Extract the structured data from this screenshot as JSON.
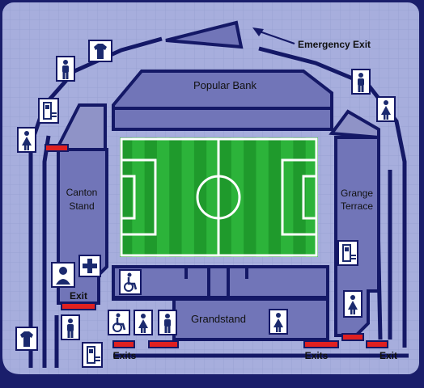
{
  "colors": {
    "background": "#a7aedd",
    "grid": "#9aa1d2",
    "frame": "#141866",
    "stand": "#7175b8",
    "stand_dark": "#5c60a0",
    "pitch": "#1f9a2c",
    "pitch_stripe": "#2cb33a",
    "exit_marker": "#e02020",
    "icon_bg": "#ffffff",
    "icon_fg": "#1b2a6e"
  },
  "stands": {
    "north": "Popular Bank",
    "west_line1": "Canton",
    "west_line2": "Stand",
    "east_line1": "Grange",
    "east_line2": "Terrace",
    "south": "Grandstand"
  },
  "labels": {
    "emergency_exit": "Emergency Exit",
    "exit_west": "Exit",
    "exits_south_left": "Exits",
    "exits_south_right": "Exits",
    "exit_southeast": "Exit"
  },
  "icons": [
    "shirt-icon",
    "male-toilet-icon",
    "female-toilet-icon",
    "phone-icon",
    "first-aid-icon",
    "steward-icon",
    "wheelchair-icon"
  ]
}
